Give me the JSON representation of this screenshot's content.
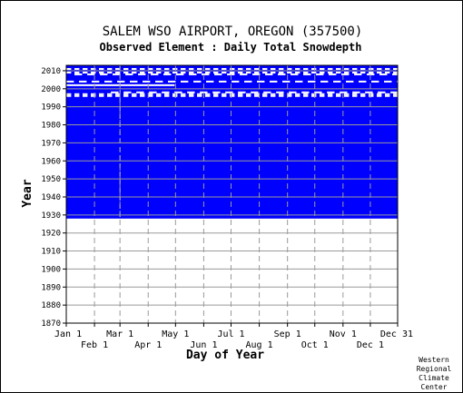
{
  "chart_data": {
    "type": "heatmap",
    "title": "SALEM WSO AIRPORT, OREGON   (357500)",
    "subtitle": "Observed Element : Daily Total Snowdepth",
    "xlabel": "Day of Year",
    "ylabel": "Year",
    "x_ticks_upper": [
      "Jan 1",
      "Mar 1",
      "May 1",
      "Jul 1",
      "Sep 1",
      "Nov 1",
      "Dec 31"
    ],
    "x_ticks_lower": [
      "Feb 1",
      "Apr 1",
      "Jun 1",
      "Aug 1",
      "Oct 1",
      "Dec 1"
    ],
    "x_tick_days_upper": [
      1,
      60,
      121,
      182,
      244,
      305,
      365
    ],
    "x_tick_days_lower": [
      32,
      91,
      152,
      213,
      274,
      335
    ],
    "y_ticks": [
      "2010",
      "2000",
      "1990",
      "1980",
      "1970",
      "1960",
      "1950",
      "1940",
      "1930",
      "1920",
      "1910",
      "1900",
      "1890",
      "1880",
      "1870"
    ],
    "xlim": [
      1,
      365
    ],
    "ylim": [
      1870,
      2013
    ],
    "grid": true,
    "colors": {
      "data": "#0000ff",
      "missing": "#ffffff",
      "grid": "#9a9a9a",
      "dash": "#c8c8c8"
    },
    "data_period": [
      1928,
      2013
    ],
    "full_record_span": [
      1928,
      1995
    ],
    "gap_rows": [
      {
        "year": 2011,
        "start": 1,
        "end": 365,
        "pattern": "sparse"
      },
      {
        "year": 2009,
        "start": 1,
        "end": 365,
        "pattern": "sparse"
      },
      {
        "year": 2008,
        "start": 10,
        "end": 365,
        "pattern": "partial"
      },
      {
        "year": 2004,
        "start": 1,
        "end": 365,
        "pattern": "partial"
      },
      {
        "year": 2002,
        "start": 1,
        "end": 120,
        "pattern": "full"
      },
      {
        "year": 1998,
        "start": 50,
        "end": 365,
        "pattern": "partial"
      },
      {
        "year": 1997,
        "start": 1,
        "end": 365,
        "pattern": "sparse"
      },
      {
        "year": 1996,
        "start": 1,
        "end": 365,
        "pattern": "sparse"
      }
    ],
    "missing_column_day": 60
  },
  "footer": {
    "credit_lines": [
      "Western",
      "Regional",
      "Climate",
      "Center"
    ]
  }
}
